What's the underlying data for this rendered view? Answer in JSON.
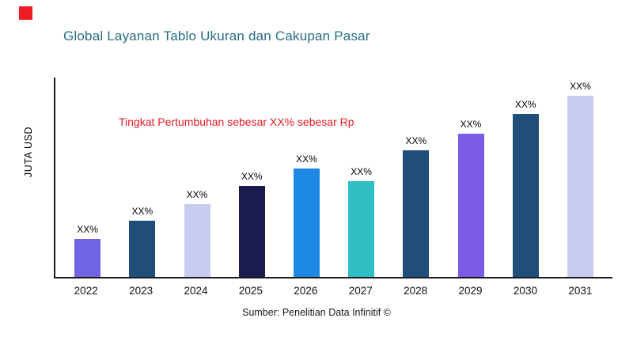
{
  "colors": {
    "title": "#266D85",
    "annotation": "#E41B23",
    "accent_square": "#ED1C24",
    "axis": "#1A1A1A"
  },
  "chart_data": {
    "type": "bar",
    "title": "Global Layanan Tablo Ukuran dan Cakupan Pasar",
    "annotation": "Tingkat Pertumbuhan sebesar XX% sebesar Rp",
    "ylabel": "JUTA USD",
    "xlabel": "",
    "source": "Sumber: Penelitian Data Infinitif ©",
    "categories": [
      "2022",
      "2023",
      "2024",
      "2025",
      "2026",
      "2027",
      "2028",
      "2029",
      "2030",
      "2031"
    ],
    "values": [
      21,
      31,
      40,
      50,
      60,
      53,
      70,
      79,
      90,
      100
    ],
    "value_labels": [
      "XX%",
      "XX%",
      "XX%",
      "XX%",
      "XX%",
      "XX%",
      "XX%",
      "XX%",
      "XX%",
      "XX%"
    ],
    "ylim": [
      0,
      110
    ],
    "grid": false,
    "legend": "none",
    "bar_colors": [
      "#7064E3",
      "#1F4E79",
      "#C8CCF0",
      "#1B1B4F",
      "#1E88E5",
      "#2FBFC4",
      "#1F4E79",
      "#7A5CE8",
      "#1F4E79",
      "#C8CCF0"
    ]
  }
}
